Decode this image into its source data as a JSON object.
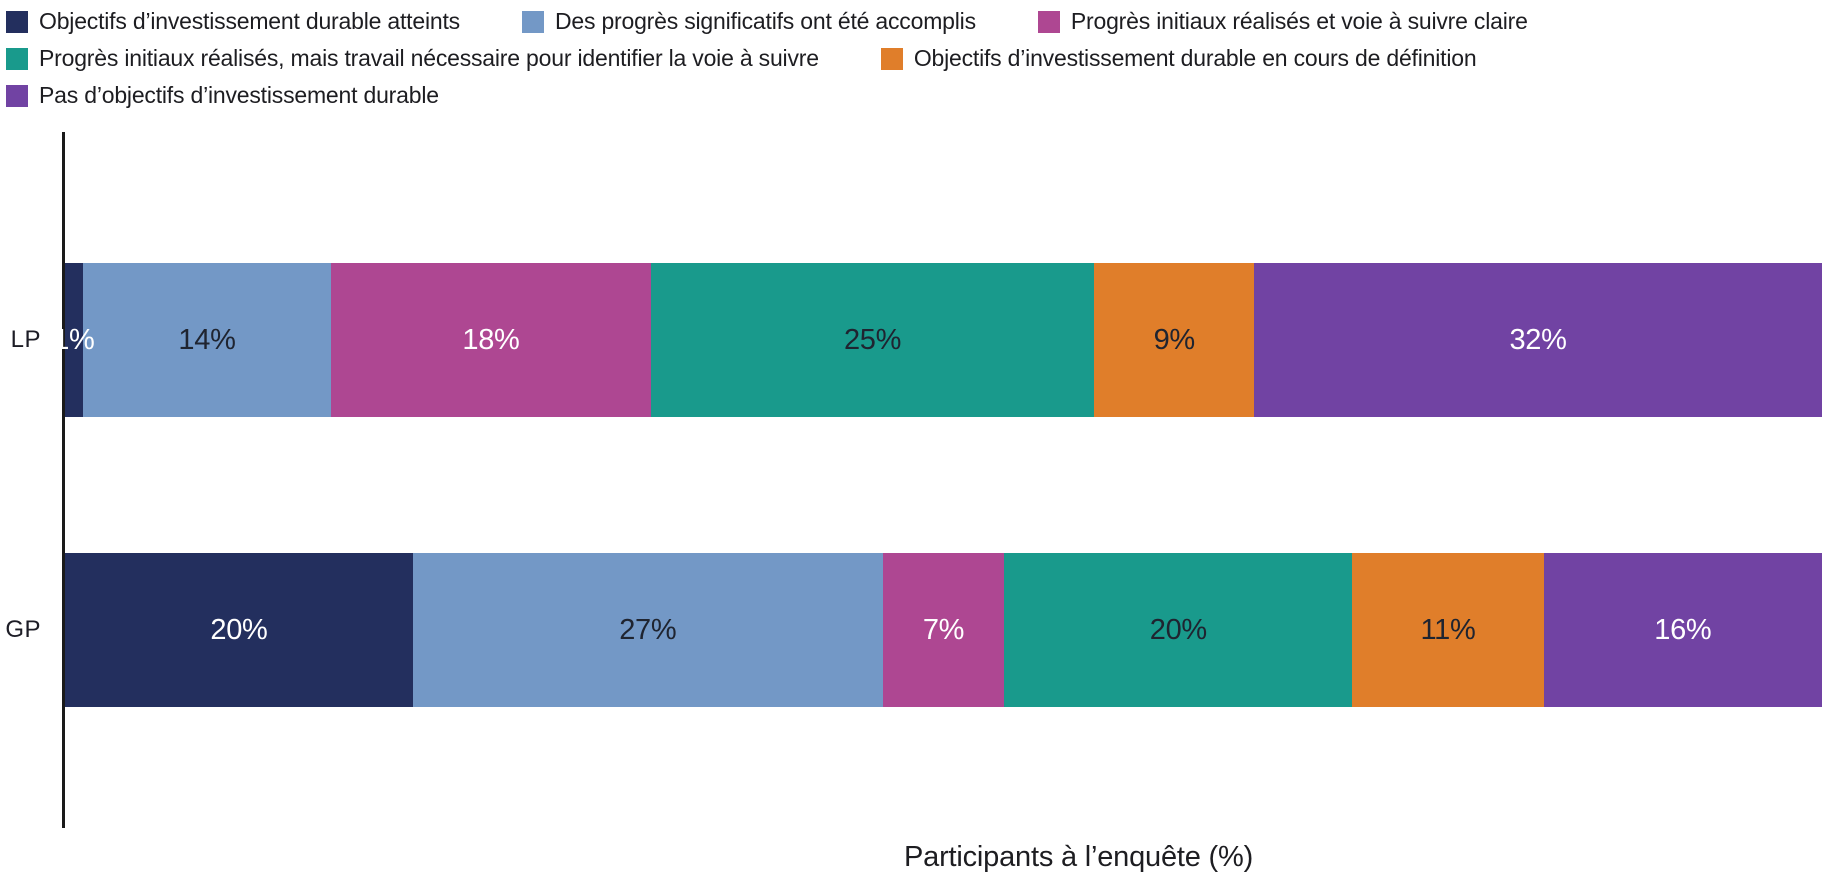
{
  "chart_data": {
    "type": "bar",
    "orientation": "horizontal-stacked",
    "title": "",
    "xlabel": "Participants à l’enquête (%)",
    "ylabel": "",
    "categories": [
      "LP",
      "GP"
    ],
    "series": [
      {
        "name": "Objectifs d’investissement durable atteints",
        "color": "#232F5E",
        "label_color": "#ffffff",
        "values": [
          1,
          20
        ]
      },
      {
        "name": "Des progrès significatifs ont été accomplis",
        "color": "#7398C6",
        "label_color": "#1f2430",
        "values": [
          14,
          27
        ]
      },
      {
        "name": "Progrès initiaux réalisés et voie à suivre claire",
        "color": "#AE4792",
        "label_color": "#ffffff",
        "values": [
          18,
          7
        ]
      },
      {
        "name": "Progrès initiaux réalisés, mais travail nécessaire pour identifier la voie à suivre",
        "color": "#199A8C",
        "label_color": "#1f2430",
        "values": [
          25,
          20
        ]
      },
      {
        "name": "Objectifs d’investissement durable en cours de définition",
        "color": "#E07E2A",
        "label_color": "#1f2430",
        "values": [
          9,
          11
        ]
      },
      {
        "name": "Pas d’objectifs d’investissement durable",
        "color": "#7143A3",
        "label_color": "#ffffff",
        "values": [
          32,
          16
        ]
      }
    ],
    "value_labels": [
      [
        "1%",
        "14%",
        "18%",
        "25%",
        "9%",
        "32%"
      ],
      [
        "20%",
        "27%",
        "7%",
        "20%",
        "11%",
        "16%"
      ]
    ],
    "legend_position": "top-left",
    "legend_rows": [
      [
        0,
        1,
        2
      ],
      [
        3,
        4
      ],
      [
        5
      ]
    ],
    "axis_color": "#1a1a1a",
    "grid": false
  }
}
